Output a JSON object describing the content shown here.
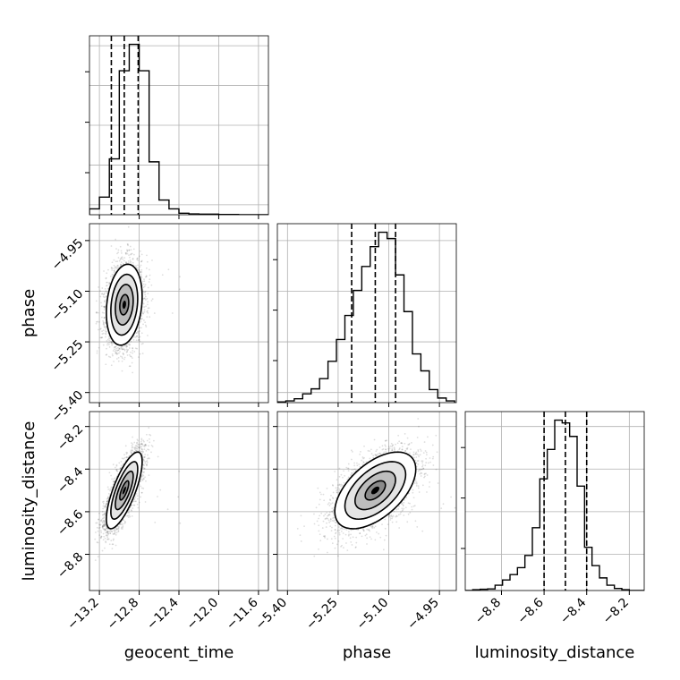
{
  "chart_data": {
    "type": "corner",
    "parameters": [
      "geocent_time",
      "phase",
      "luminosity_distance"
    ],
    "axis_labels": {
      "geocent_time": "geocent_time",
      "phase": "phase",
      "luminosity_distance": "luminosity_distance"
    },
    "ranges": {
      "geocent_time": [
        -13.3,
        -11.5
      ],
      "phase": [
        -5.43,
        -4.9
      ],
      "luminosity_distance": [
        -8.97,
        -8.13
      ]
    },
    "ticks": {
      "geocent_time": [
        {
          "v": -13.2,
          "label": "−13.2"
        },
        {
          "v": -12.8,
          "label": "−12.8"
        },
        {
          "v": -12.4,
          "label": "−12.4"
        },
        {
          "v": -12.0,
          "label": "−12.0"
        },
        {
          "v": -11.6,
          "label": "−11.6"
        }
      ],
      "phase": [
        {
          "v": -5.4,
          "label": "−5.40"
        },
        {
          "v": -5.25,
          "label": "−5.25"
        },
        {
          "v": -5.1,
          "label": "−5.10"
        },
        {
          "v": -4.95,
          "label": "−4.95"
        }
      ],
      "luminosity_distance": [
        {
          "v": -8.8,
          "label": "−8.8"
        },
        {
          "v": -8.6,
          "label": "−8.6"
        },
        {
          "v": -8.4,
          "label": "−8.4"
        },
        {
          "v": -8.2,
          "label": "−8.2"
        }
      ]
    },
    "grid": true,
    "quantiles": {
      "geocent_time": [
        -13.08,
        -12.95,
        -12.81
      ],
      "phase": [
        -5.21,
        -5.14,
        -5.08
      ],
      "luminosity_distance": [
        -8.6,
        -8.5,
        -8.4
      ]
    },
    "histograms": {
      "geocent_time": {
        "edges": [
          -13.3,
          -13.2,
          -13.1,
          -13.0,
          -12.9,
          -12.8,
          -12.7,
          -12.6,
          -12.5,
          -12.4,
          -12.3,
          -12.2,
          -12.1,
          -12.0,
          -11.9,
          -11.8,
          -11.7,
          -11.6,
          -11.5
        ],
        "counts": [
          0.02,
          0.06,
          0.19,
          0.49,
          0.58,
          0.49,
          0.18,
          0.05,
          0.02,
          0.005,
          0.003,
          0.002,
          0.002,
          0.001,
          0.001,
          0.0,
          0.0,
          0.0
        ]
      },
      "phase": {
        "edges": [
          -5.43,
          -5.405,
          -5.38,
          -5.355,
          -5.33,
          -5.305,
          -5.28,
          -5.255,
          -5.23,
          -5.205,
          -5.18,
          -5.155,
          -5.13,
          -5.105,
          -5.08,
          -5.055,
          -5.03,
          -5.005,
          -4.98,
          -4.955,
          -4.93,
          -4.905
        ],
        "counts": [
          0.002,
          0.005,
          0.011,
          0.025,
          0.039,
          0.068,
          0.117,
          0.179,
          0.247,
          0.318,
          0.386,
          0.442,
          0.483,
          0.465,
          0.362,
          0.258,
          0.138,
          0.09,
          0.037,
          0.013,
          0.005
        ]
      },
      "luminosity_distance": {
        "edges": [
          -8.97,
          -8.935,
          -8.9,
          -8.865,
          -8.83,
          -8.795,
          -8.76,
          -8.725,
          -8.69,
          -8.655,
          -8.62,
          -8.585,
          -8.55,
          -8.515,
          -8.48,
          -8.445,
          -8.41,
          -8.375,
          -8.34,
          -8.305,
          -8.27,
          -8.235,
          -8.2,
          -8.165,
          -8.13
        ],
        "counts": [
          0.0,
          0.002,
          0.003,
          0.004,
          0.013,
          0.026,
          0.039,
          0.056,
          0.086,
          0.154,
          0.274,
          0.346,
          0.418,
          0.411,
          0.378,
          0.256,
          0.106,
          0.061,
          0.031,
          0.013,
          0.005,
          0.002,
          0.0,
          0.0
        ]
      }
    },
    "pairs": [
      {
        "x": "geocent_time",
        "y": "phase",
        "mean": [
          -12.95,
          -5.14
        ],
        "sd": [
          0.09,
          0.06
        ],
        "rho": 0.2
      },
      {
        "x": "geocent_time",
        "y": "luminosity_distance",
        "mean": [
          -12.95,
          -8.5
        ],
        "sd": [
          0.09,
          0.09
        ],
        "rho": 0.75
      },
      {
        "x": "phase",
        "y": "luminosity_distance",
        "mean": [
          -5.14,
          -8.5
        ],
        "sd": [
          0.06,
          0.09
        ],
        "rho": 0.55
      }
    ],
    "contour_levels_sigma": [
      0.5,
      1.0,
      1.5,
      2.0
    ],
    "sample_count": 3500
  }
}
